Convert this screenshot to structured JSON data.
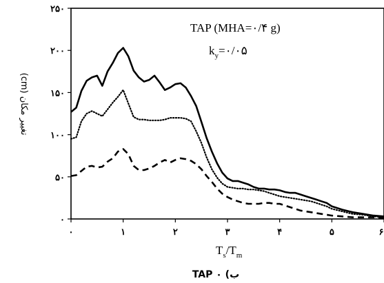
{
  "chart_data": {
    "type": "line",
    "caption": "ب) TAP ۰",
    "annotation": {
      "line1": "TAP (MHA=۰/۴ g)",
      "line2_main": "k",
      "line2_sub": "y",
      "line2_rest": "=۰/۰۵"
    },
    "xlabel": {
      "main1": "T",
      "sub1": "s",
      "slash": "/",
      "main2": "T",
      "sub2": "m"
    },
    "ylabel": "تغییر مکان (cm)",
    "xlim": [
      0,
      6
    ],
    "ylim": [
      0,
      250
    ],
    "x_ticks": [
      {
        "value": 0,
        "label": "۰"
      },
      {
        "value": 1,
        "label": "۱"
      },
      {
        "value": 2,
        "label": "۲"
      },
      {
        "value": 3,
        "label": "۳"
      },
      {
        "value": 4,
        "label": "۴"
      },
      {
        "value": 5,
        "label": "۵"
      },
      {
        "value": 6,
        "label": "۶"
      }
    ],
    "y_ticks": [
      {
        "value": 0,
        "label": "۰"
      },
      {
        "value": 50,
        "label": "۵۰"
      },
      {
        "value": 100,
        "label": "۱۰۰"
      },
      {
        "value": 150,
        "label": "۱۵۰"
      },
      {
        "value": 200,
        "label": "۲۰۰"
      },
      {
        "value": 250,
        "label": "۲۵۰"
      }
    ],
    "series": [
      {
        "style": "solid",
        "x": [
          0,
          0.1,
          0.2,
          0.3,
          0.4,
          0.5,
          0.6,
          0.7,
          0.8,
          0.9,
          1.0,
          1.1,
          1.2,
          1.3,
          1.4,
          1.5,
          1.6,
          1.7,
          1.8,
          1.9,
          2.0,
          2.1,
          2.2,
          2.3,
          2.4,
          2.5,
          2.6,
          2.7,
          2.8,
          2.9,
          3.0,
          3.1,
          3.2,
          3.3,
          3.4,
          3.5,
          3.6,
          3.7,
          3.8,
          3.9,
          4.0,
          4.1,
          4.2,
          4.3,
          4.4,
          4.5,
          4.6,
          4.7,
          4.8,
          4.9,
          5.0,
          5.2,
          5.4,
          5.6,
          5.8,
          6.0
        ],
        "y": [
          127,
          132,
          152,
          164,
          168,
          170,
          158,
          175,
          185,
          197,
          203,
          193,
          176,
          168,
          163,
          165,
          170,
          162,
          153,
          156,
          160,
          161,
          156,
          146,
          134,
          115,
          96,
          80,
          66,
          55,
          48,
          45,
          45,
          43,
          41,
          38,
          36,
          36,
          35,
          35,
          34,
          32,
          31,
          31,
          29,
          27,
          25,
          23,
          21,
          19,
          15,
          11,
          8,
          6,
          4,
          3
        ]
      },
      {
        "style": "dotted",
        "x": [
          0,
          0.1,
          0.2,
          0.3,
          0.4,
          0.5,
          0.6,
          0.7,
          0.8,
          0.9,
          1.0,
          1.1,
          1.2,
          1.3,
          1.4,
          1.5,
          1.6,
          1.7,
          1.8,
          1.9,
          2.0,
          2.1,
          2.2,
          2.3,
          2.4,
          2.5,
          2.6,
          2.7,
          2.8,
          2.9,
          3.0,
          3.1,
          3.2,
          3.3,
          3.4,
          3.5,
          3.6,
          3.7,
          3.8,
          3.9,
          4.0,
          4.1,
          4.2,
          4.3,
          4.4,
          4.5,
          4.6,
          4.7,
          4.8,
          4.9,
          5.0,
          5.2,
          5.4,
          5.6,
          5.8,
          6.0
        ],
        "y": [
          95,
          97,
          116,
          125,
          128,
          125,
          122,
          130,
          138,
          145,
          153,
          137,
          121,
          118,
          118,
          117,
          117,
          117,
          118,
          120,
          120,
          120,
          119,
          116,
          104,
          90,
          73,
          59,
          49,
          42,
          38,
          37,
          36,
          36,
          35,
          35,
          34,
          33,
          31,
          29,
          27,
          26,
          25,
          24,
          23,
          22,
          21,
          19,
          17,
          15,
          12,
          9,
          6,
          5,
          3,
          2
        ]
      },
      {
        "style": "dashed",
        "x": [
          0,
          0.1,
          0.2,
          0.3,
          0.4,
          0.5,
          0.6,
          0.7,
          0.8,
          0.9,
          1.0,
          1.1,
          1.2,
          1.3,
          1.4,
          1.5,
          1.6,
          1.7,
          1.8,
          1.9,
          2.0,
          2.1,
          2.2,
          2.3,
          2.4,
          2.5,
          2.6,
          2.7,
          2.8,
          2.9,
          3.0,
          3.1,
          3.2,
          3.3,
          3.4,
          3.5,
          3.6,
          3.7,
          3.8,
          3.9,
          4.0,
          4.1,
          4.2,
          4.3,
          4.4,
          4.5,
          4.6,
          4.7,
          4.8,
          4.9,
          5.0,
          5.2,
          5.4,
          5.6,
          5.8,
          6.0
        ],
        "y": [
          51,
          52,
          57,
          62,
          63,
          61,
          62,
          68,
          72,
          80,
          83,
          77,
          63,
          58,
          58,
          60,
          63,
          67,
          70,
          67,
          70,
          72,
          71,
          69,
          65,
          59,
          51,
          44,
          36,
          30,
          26,
          23,
          21,
          19,
          18,
          18,
          18,
          19,
          19,
          18,
          18,
          16,
          14,
          12,
          10,
          9,
          8,
          7,
          6,
          5,
          4,
          3,
          2,
          2,
          2,
          1
        ]
      }
    ]
  }
}
